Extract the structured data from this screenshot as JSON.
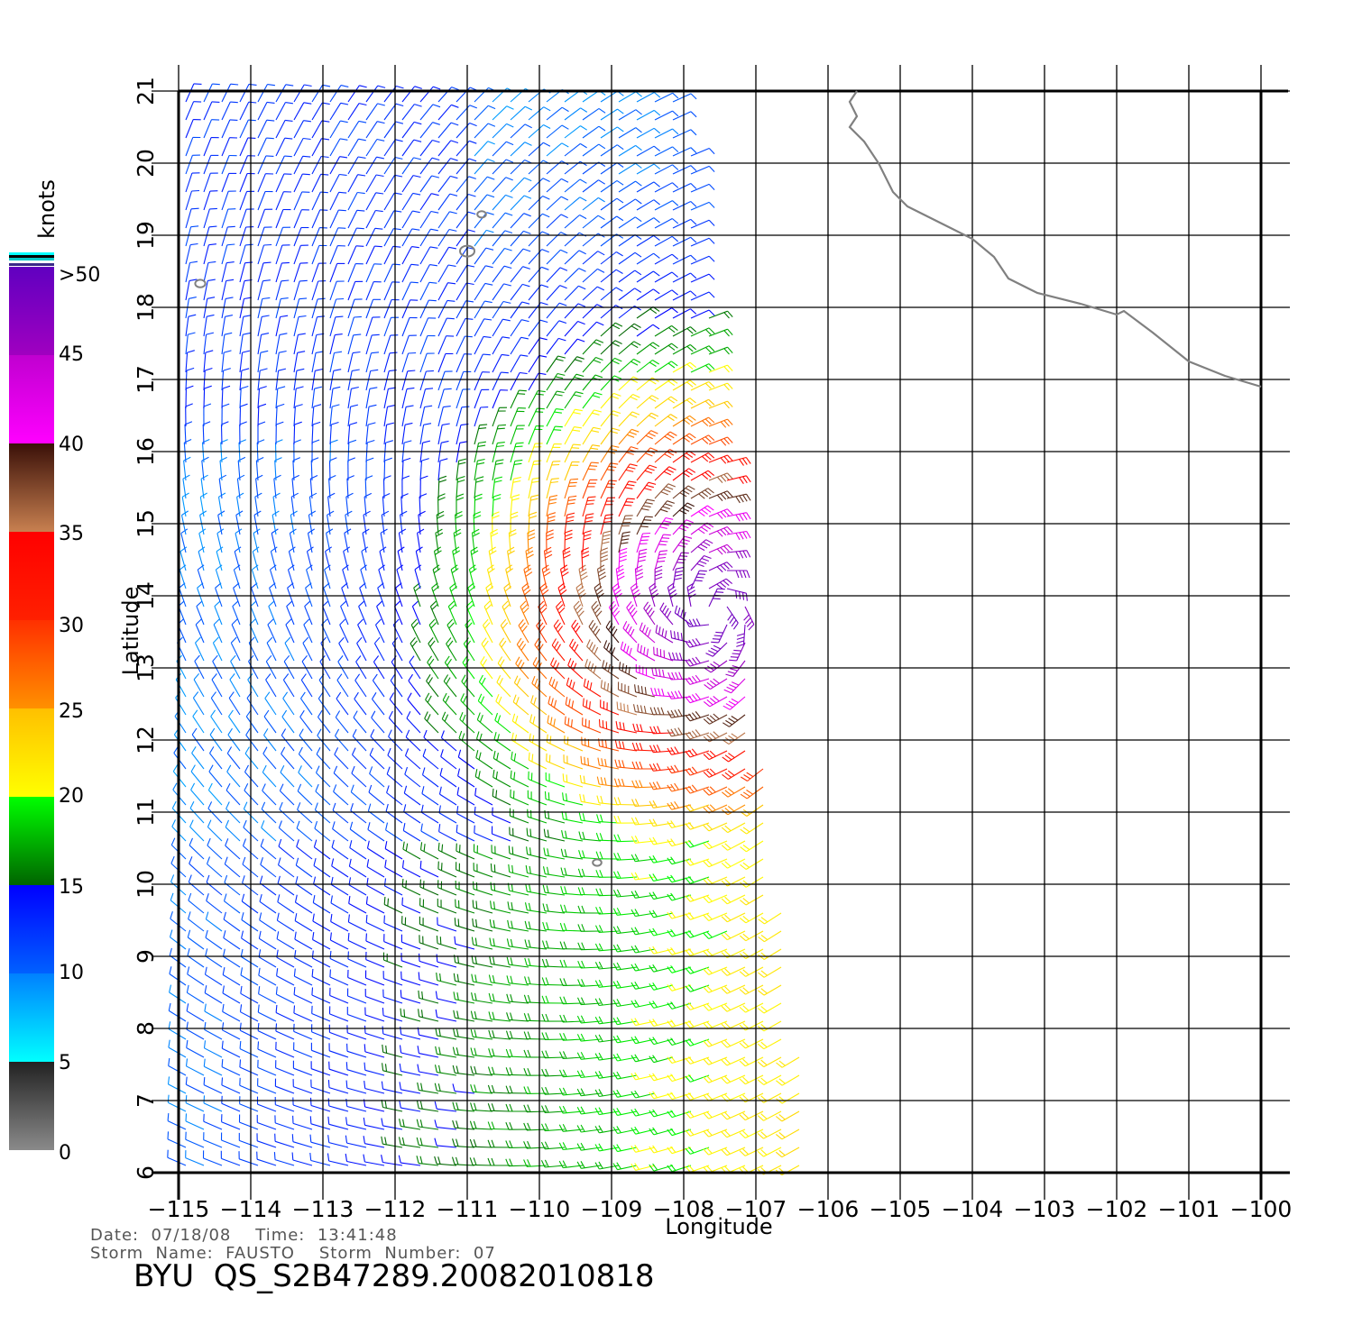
{
  "map": {
    "lon_range": [
      -115,
      -100
    ],
    "lat_range": [
      6,
      21
    ],
    "lon_ticks": [
      -115,
      -114,
      -113,
      -112,
      -111,
      -110,
      -109,
      -108,
      -107,
      -106,
      -105,
      -104,
      -103,
      -102,
      -101,
      -100
    ],
    "lat_ticks": [
      6,
      7,
      8,
      9,
      10,
      11,
      12,
      13,
      14,
      15,
      16,
      17,
      18,
      19,
      20,
      21
    ],
    "lon_labels": [
      "−115",
      "−114",
      "−113",
      "−112",
      "−111",
      "−110",
      "−109",
      "−108",
      "−107",
      "−106",
      "−105",
      "−104",
      "−103",
      "−102",
      "−101",
      "−100"
    ],
    "lat_labels": [
      "6",
      "7",
      "8",
      "9",
      "10",
      "11",
      "12",
      "13",
      "14",
      "15",
      "16",
      "17",
      "18",
      "19",
      "20",
      "21"
    ],
    "x_axis_label": "Longitude",
    "y_axis_label": "Latitude",
    "grid": true,
    "coastline_color": "#808080",
    "coastline": [
      [
        -105.6,
        21.0
      ],
      [
        -105.7,
        20.85
      ],
      [
        -105.6,
        20.65
      ],
      [
        -105.7,
        20.5
      ],
      [
        -105.5,
        20.3
      ],
      [
        -105.3,
        20.0
      ],
      [
        -105.1,
        19.6
      ],
      [
        -104.9,
        19.4
      ],
      [
        -104.6,
        19.25
      ],
      [
        -104.3,
        19.1
      ],
      [
        -104.0,
        18.95
      ],
      [
        -103.7,
        18.7
      ],
      [
        -103.5,
        18.4
      ],
      [
        -103.1,
        18.2
      ],
      [
        -102.5,
        18.05
      ],
      [
        -102.0,
        17.9
      ],
      [
        -101.9,
        17.95
      ],
      [
        -101.5,
        17.65
      ],
      [
        -101.0,
        17.25
      ],
      [
        -100.5,
        17.05
      ],
      [
        -100.0,
        16.9
      ]
    ],
    "islands": [
      {
        "lon": -114.7,
        "lat": 18.33,
        "r": 0.07
      },
      {
        "lon": -111.0,
        "lat": 18.78,
        "r": 0.1
      },
      {
        "lon": -110.8,
        "lat": 19.29,
        "r": 0.06
      },
      {
        "lon": -109.2,
        "lat": 10.3,
        "r": 0.06
      }
    ],
    "swath": {
      "west": -115,
      "north_lat": 21,
      "north_east_lon": -108.0,
      "south_lat": 6,
      "south_east_lon": -106.2
    },
    "storm_center": {
      "lon": -107.6,
      "lat": 13.8
    }
  },
  "colorbar": {
    "unit": "knots",
    "labels": [
      ">50",
      "45",
      "40",
      "35",
      "30",
      "25",
      "20",
      "15",
      "10",
      "5",
      "0"
    ],
    "bands": [
      {
        "min": 0,
        "max": 5,
        "colors": [
          "#8a8a8a",
          "#222222"
        ]
      },
      {
        "min": 5,
        "max": 10,
        "colors": [
          "#00ffff",
          "#0080ff"
        ]
      },
      {
        "min": 10,
        "max": 15,
        "colors": [
          "#0060ff",
          "#0000ff"
        ]
      },
      {
        "min": 15,
        "max": 20,
        "colors": [
          "#006400",
          "#00ff00"
        ]
      },
      {
        "min": 20,
        "max": 25,
        "colors": [
          "#ffff00",
          "#ffc000"
        ]
      },
      {
        "min": 25,
        "max": 30,
        "colors": [
          "#ff9000",
          "#ff3000"
        ]
      },
      {
        "min": 30,
        "max": 35,
        "colors": [
          "#ff2000",
          "#ff0000"
        ]
      },
      {
        "min": 35,
        "max": 40,
        "colors": [
          "#c88050",
          "#3a1008"
        ]
      },
      {
        "min": 40,
        "max": 45,
        "colors": [
          "#ff00ff",
          "#c000d0"
        ]
      },
      {
        "min": 45,
        "max": 50,
        "colors": [
          "#a000c0",
          "#6000c0"
        ]
      }
    ]
  },
  "info": {
    "date_line": "Date:  07/18/08    Time:  13:41:48",
    "storm_line": "Storm  Name:  FAUSTO    Storm  Number:  07",
    "product_title": "BYU  QS_S2B47289.20082010818"
  }
}
